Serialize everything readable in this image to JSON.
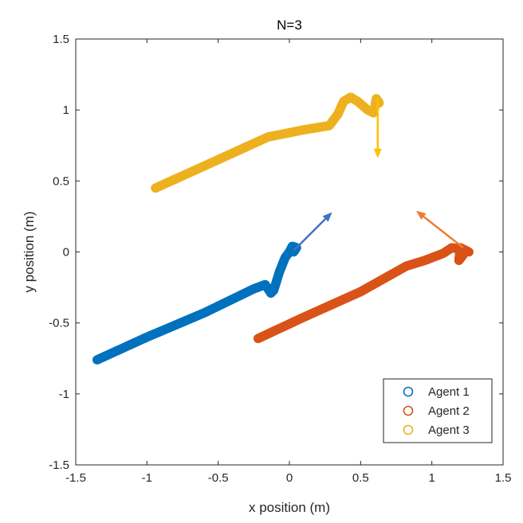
{
  "chart_data": {
    "type": "scatter",
    "title": "N=3",
    "xlabel": "x position (m)",
    "ylabel": "y position (m)",
    "xlim": [
      -1.5,
      1.5
    ],
    "ylim": [
      -1.5,
      1.5
    ],
    "xticks": [
      "-1.5",
      "-1",
      "-0.5",
      "0",
      "0.5",
      "1",
      "1.5"
    ],
    "yticks": [
      "-1.5",
      "-1",
      "-0.5",
      "0",
      "0.5",
      "1",
      "1.5"
    ],
    "grid": false,
    "legend_position": "bottom-right",
    "series": [
      {
        "name": "Agent 1",
        "color": "#0072BD",
        "marker": "circle-open",
        "trajectory": [
          [
            -1.35,
            -0.76
          ],
          [
            -1.0,
            -0.6
          ],
          [
            -0.6,
            -0.43
          ],
          [
            -0.25,
            -0.26
          ],
          [
            -0.17,
            -0.23
          ],
          [
            -0.13,
            -0.29
          ],
          [
            -0.11,
            -0.27
          ],
          [
            -0.07,
            -0.14
          ],
          [
            -0.03,
            -0.04
          ],
          [
            0.0,
            0.0
          ],
          [
            0.02,
            0.04
          ],
          [
            0.05,
            0.03
          ],
          [
            0.03,
            0.0
          ]
        ],
        "velocity_arrow": {
          "from": [
            0.03,
            0.01
          ],
          "to": [
            0.3,
            0.28
          ],
          "color": "#4472C4"
        }
      },
      {
        "name": "Agent 2",
        "color": "#D95319",
        "marker": "circle-open",
        "trajectory": [
          [
            -0.22,
            -0.61
          ],
          [
            0.1,
            -0.46
          ],
          [
            0.5,
            -0.28
          ],
          [
            0.82,
            -0.1
          ],
          [
            0.95,
            -0.06
          ],
          [
            1.08,
            -0.01
          ],
          [
            1.14,
            0.03
          ],
          [
            1.2,
            0.02
          ],
          [
            1.22,
            -0.02
          ],
          [
            1.19,
            -0.06
          ],
          [
            1.2,
            0.03
          ],
          [
            1.26,
            0.0
          ]
        ],
        "velocity_arrow": {
          "from": [
            1.22,
            0.03
          ],
          "to": [
            0.89,
            0.29
          ],
          "color": "#ED7D31"
        }
      },
      {
        "name": "Agent 3",
        "color": "#EDB120",
        "marker": "circle-open",
        "trajectory": [
          [
            -0.94,
            0.45
          ],
          [
            -0.5,
            0.65
          ],
          [
            -0.15,
            0.81
          ],
          [
            0.1,
            0.86
          ],
          [
            0.28,
            0.89
          ],
          [
            0.34,
            0.97
          ],
          [
            0.38,
            1.06
          ],
          [
            0.43,
            1.09
          ],
          [
            0.48,
            1.06
          ],
          [
            0.55,
            1.0
          ],
          [
            0.59,
            0.98
          ],
          [
            0.6,
            1.02
          ],
          [
            0.61,
            1.08
          ],
          [
            0.63,
            1.05
          ]
        ],
        "velocity_arrow": {
          "from": [
            0.62,
            1.08
          ],
          "to": [
            0.62,
            0.66
          ],
          "color": "#FFC000"
        }
      }
    ]
  }
}
